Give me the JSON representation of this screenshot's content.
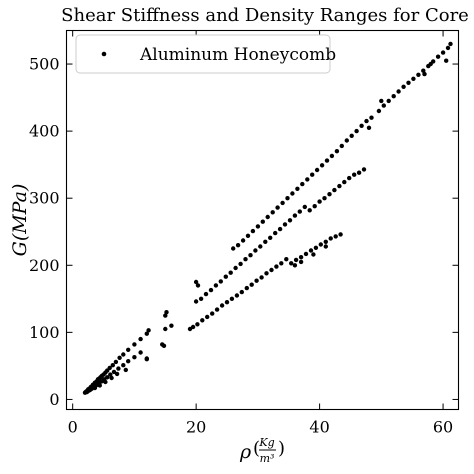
{
  "chart_data": {
    "type": "scatter",
    "title": "Shear Stiffness and Density Ranges for Core",
    "xlabel_base": "ρ",
    "xlabel_num": "Kg",
    "xlabel_den": "m³",
    "ylabel": "G(MPa)",
    "xlim": [
      -1,
      62.5
    ],
    "ylim": [
      -15,
      550
    ],
    "xticks": [
      0,
      20,
      40,
      60
    ],
    "yticks": [
      0,
      100,
      200,
      300,
      400,
      500
    ],
    "grid": false,
    "legend_position": "top-left",
    "series": [
      {
        "name": "Aluminum Honeycomb",
        "color": "#000000",
        "marker": "circle",
        "points": [
          [
            2.0,
            10
          ],
          [
            2.2,
            12
          ],
          [
            2.4,
            13
          ],
          [
            2.5,
            15
          ],
          [
            2.7,
            16
          ],
          [
            2.9,
            18
          ],
          [
            3.0,
            19
          ],
          [
            3.2,
            20
          ],
          [
            3.3,
            22
          ],
          [
            3.5,
            23
          ],
          [
            3.6,
            25
          ],
          [
            3.8,
            26
          ],
          [
            4.0,
            28
          ],
          [
            4.1,
            30
          ],
          [
            4.3,
            31
          ],
          [
            4.5,
            33
          ],
          [
            4.7,
            35
          ],
          [
            5.0,
            37
          ],
          [
            5.3,
            40
          ],
          [
            5.6,
            43
          ],
          [
            6.0,
            47
          ],
          [
            6.5,
            51
          ],
          [
            7.0,
            56
          ],
          [
            7.6,
            62
          ],
          [
            8.2,
            67
          ],
          [
            9.0,
            74
          ],
          [
            10.0,
            82
          ],
          [
            11.0,
            90
          ],
          [
            12.0,
            98
          ],
          [
            2.3,
            11
          ],
          [
            2.6,
            13
          ],
          [
            2.9,
            15
          ],
          [
            3.1,
            16
          ],
          [
            3.4,
            18
          ],
          [
            3.7,
            20
          ],
          [
            4.0,
            22
          ],
          [
            4.3,
            24
          ],
          [
            4.7,
            27
          ],
          [
            5.1,
            30
          ],
          [
            5.6,
            33
          ],
          [
            6.1,
            37
          ],
          [
            6.7,
            41
          ],
          [
            7.4,
            46
          ],
          [
            8.2,
            51
          ],
          [
            9.0,
            57
          ],
          [
            10.0,
            63
          ],
          [
            11.0,
            70
          ],
          [
            2.1,
            11
          ],
          [
            2.8,
            14
          ],
          [
            3.6,
            17
          ],
          [
            4.4,
            21
          ],
          [
            5.3,
            26
          ],
          [
            6.3,
            32
          ],
          [
            7.2,
            38
          ],
          [
            8.6,
            44
          ],
          [
            12.0,
            61
          ],
          [
            14.5,
            82
          ],
          [
            14.8,
            80
          ],
          [
            15.0,
            105
          ],
          [
            15.0,
            125
          ],
          [
            15.2,
            130
          ],
          [
            12.3,
            103
          ],
          [
            12.0,
            60
          ],
          [
            16.0,
            110
          ],
          [
            19.0,
            105
          ],
          [
            19.5,
            108
          ],
          [
            20.2,
            112
          ],
          [
            21.0,
            118
          ],
          [
            21.8,
            123
          ],
          [
            22.6,
            128
          ],
          [
            23.4,
            134
          ],
          [
            24.2,
            140
          ],
          [
            25.0,
            145
          ],
          [
            25.8,
            150
          ],
          [
            26.6,
            155
          ],
          [
            27.4,
            160
          ],
          [
            28.2,
            166
          ],
          [
            29.0,
            171
          ],
          [
            29.8,
            177
          ],
          [
            30.6,
            182
          ],
          [
            31.4,
            188
          ],
          [
            32.2,
            193
          ],
          [
            33.0,
            198
          ],
          [
            33.8,
            203
          ],
          [
            34.6,
            209
          ],
          [
            35.4,
            203
          ],
          [
            36.2,
            208
          ],
          [
            37.0,
            212
          ],
          [
            37.8,
            217
          ],
          [
            38.6,
            222
          ],
          [
            39.4,
            226
          ],
          [
            40.2,
            231
          ],
          [
            41.0,
            235
          ],
          [
            41.8,
            240
          ],
          [
            42.6,
            243
          ],
          [
            43.4,
            246
          ],
          [
            36.0,
            200
          ],
          [
            37.0,
            205
          ],
          [
            39.0,
            216
          ],
          [
            41.0,
            228
          ],
          [
            20.0,
            146
          ],
          [
            20.8,
            150
          ],
          [
            21.6,
            157
          ],
          [
            22.4,
            163
          ],
          [
            23.2,
            170
          ],
          [
            24.0,
            176
          ],
          [
            24.8,
            183
          ],
          [
            25.6,
            189
          ],
          [
            26.4,
            196
          ],
          [
            27.2,
            202
          ],
          [
            28.0,
            209
          ],
          [
            28.8,
            215
          ],
          [
            29.6,
            222
          ],
          [
            30.4,
            228
          ],
          [
            31.2,
            235
          ],
          [
            32.0,
            241
          ],
          [
            32.8,
            248
          ],
          [
            33.6,
            254
          ],
          [
            34.4,
            261
          ],
          [
            35.2,
            267
          ],
          [
            36.0,
            274
          ],
          [
            36.8,
            280
          ],
          [
            37.6,
            287
          ],
          [
            38.4,
            282
          ],
          [
            39.2,
            288
          ],
          [
            40.0,
            295
          ],
          [
            40.8,
            300
          ],
          [
            41.6,
            306
          ],
          [
            42.4,
            312
          ],
          [
            43.2,
            318
          ],
          [
            44.0,
            324
          ],
          [
            44.8,
            330
          ],
          [
            45.6,
            335
          ],
          [
            46.4,
            338
          ],
          [
            47.2,
            343
          ],
          [
            20.0,
            175
          ],
          [
            20.3,
            170
          ],
          [
            26.0,
            225
          ],
          [
            26.8,
            230
          ],
          [
            27.6,
            237
          ],
          [
            28.4,
            244
          ],
          [
            29.2,
            251
          ],
          [
            30.0,
            258
          ],
          [
            30.8,
            265
          ],
          [
            31.6,
            272
          ],
          [
            32.4,
            279
          ],
          [
            33.2,
            286
          ],
          [
            34.0,
            293
          ],
          [
            34.8,
            300
          ],
          [
            35.6,
            307
          ],
          [
            36.4,
            314
          ],
          [
            37.2,
            321
          ],
          [
            38.0,
            328
          ],
          [
            38.8,
            335
          ],
          [
            39.6,
            342
          ],
          [
            40.4,
            349
          ],
          [
            41.2,
            356
          ],
          [
            42.0,
            363
          ],
          [
            42.8,
            370
          ],
          [
            43.6,
            378
          ],
          [
            44.4,
            386
          ],
          [
            45.2,
            393
          ],
          [
            46.0,
            400
          ],
          [
            46.8,
            408
          ],
          [
            47.6,
            415
          ],
          [
            48.4,
            420
          ],
          [
            49.6,
            430
          ],
          [
            50.4,
            438
          ],
          [
            51.2,
            445
          ],
          [
            52.0,
            452
          ],
          [
            52.8,
            459
          ],
          [
            53.6,
            466
          ],
          [
            54.4,
            472
          ],
          [
            55.2,
            478
          ],
          [
            56.0,
            484
          ],
          [
            56.8,
            490
          ],
          [
            57.6,
            497
          ],
          [
            58.4,
            504
          ],
          [
            59.2,
            511
          ],
          [
            60.0,
            517
          ],
          [
            60.8,
            524
          ],
          [
            61.2,
            530
          ],
          [
            58.0,
            500
          ],
          [
            60.5,
            505
          ],
          [
            48.0,
            405
          ],
          [
            50.0,
            445
          ],
          [
            57.0,
            485
          ]
        ]
      }
    ]
  }
}
